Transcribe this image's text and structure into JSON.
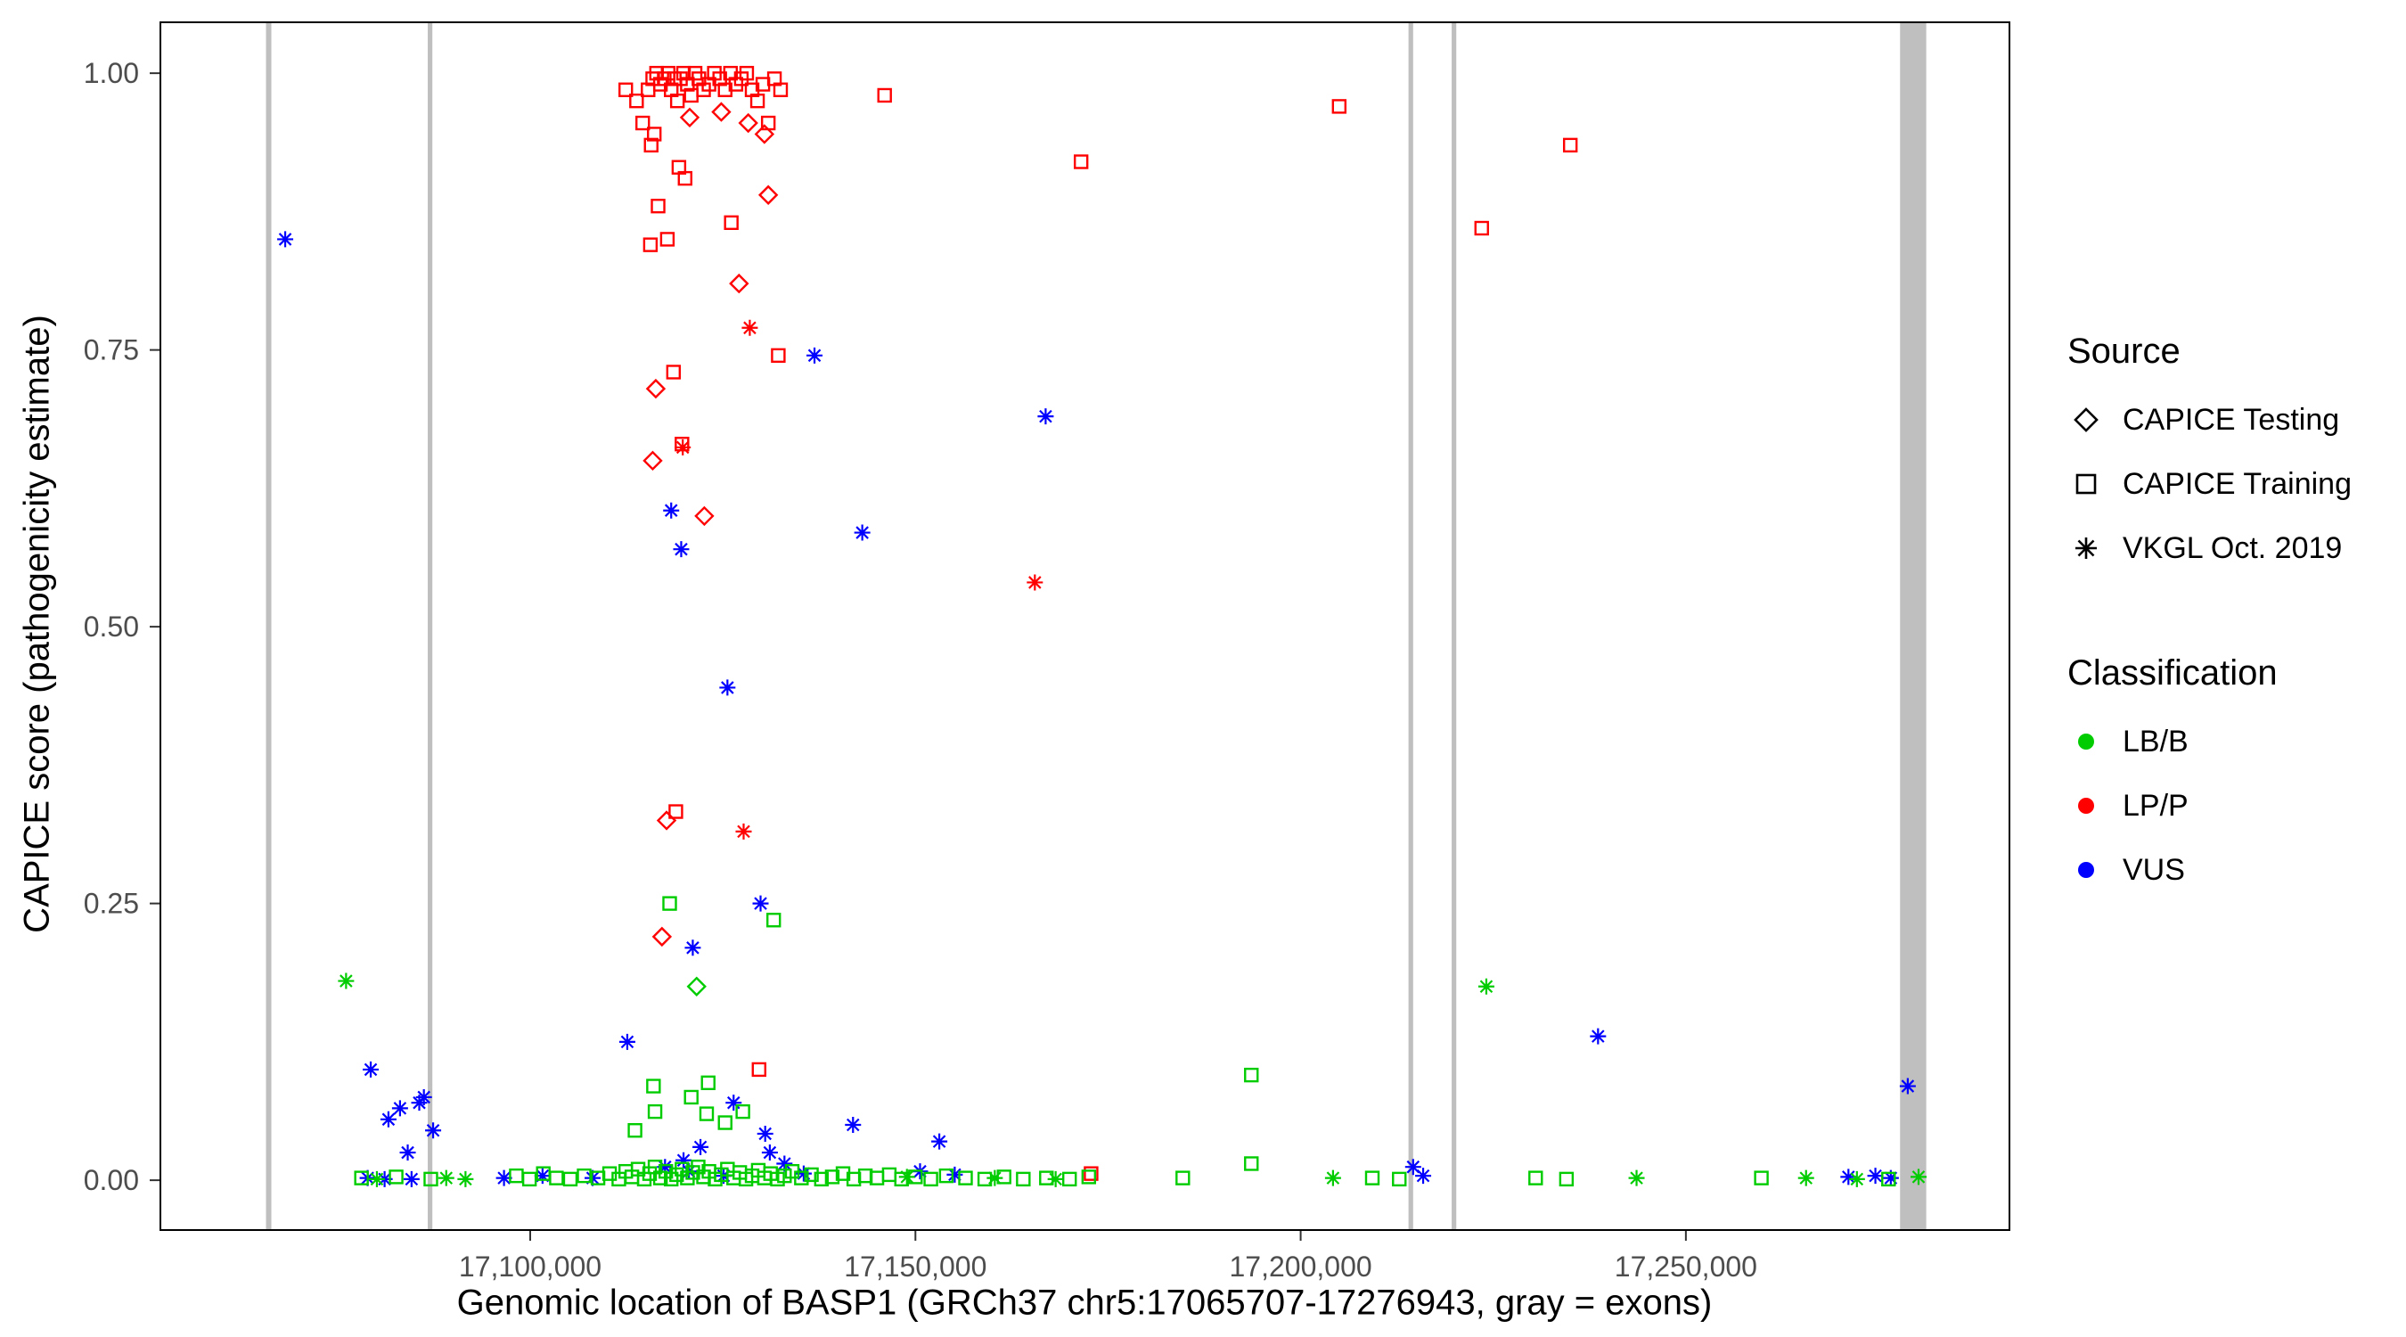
{
  "figure": {
    "xlabel": "Genomic location of BASP1 (GRCh37 chr5:17065707-17276943, gray = exons)",
    "ylabel": "CAPICE score (pathogenicity estimate)"
  },
  "legend": {
    "source": {
      "title": "Source",
      "items": [
        {
          "label": "CAPICE Testing",
          "marker": "diamond"
        },
        {
          "label": "CAPICE Training",
          "marker": "square"
        },
        {
          "label": "VKGL Oct. 2019",
          "marker": "asterisk"
        }
      ]
    },
    "classification": {
      "title": "Classification",
      "items": [
        {
          "label": "LB/B",
          "color": "#00cc00"
        },
        {
          "label": "LP/P",
          "color": "#ff0000"
        },
        {
          "label": "VUS",
          "color": "#0000ff"
        }
      ]
    }
  },
  "chart_data": {
    "type": "scatter",
    "title": "",
    "xlabel": "Genomic location of BASP1 (GRCh37 chr5:17065707-17276943, gray = exons)",
    "ylabel": "CAPICE score (pathogenicity estimate)",
    "xlim": [
      17052000,
      17292000
    ],
    "ylim": [
      -0.045,
      1.046
    ],
    "x_ticks": [
      {
        "value": 17100000,
        "label": "17,100,000"
      },
      {
        "value": 17150000,
        "label": "17,150,000"
      },
      {
        "value": 17200000,
        "label": "17,200,000"
      },
      {
        "value": 17250000,
        "label": "17,250,000"
      }
    ],
    "y_ticks": [
      {
        "value": 0.0,
        "label": "0.00"
      },
      {
        "value": 0.25,
        "label": "0.25"
      },
      {
        "value": 0.5,
        "label": "0.50"
      },
      {
        "value": 0.75,
        "label": "0.75"
      },
      {
        "value": 1.0,
        "label": "1.00"
      }
    ],
    "exon_color": "#bfbfbf",
    "exons": [
      [
        17065707,
        17066400
      ],
      [
        17086700,
        17087300
      ],
      [
        17214000,
        17214600
      ],
      [
        17219600,
        17220200
      ],
      [
        17277800,
        17281200
      ]
    ],
    "marker_shapes": {
      "test": "diamond",
      "train": "square",
      "vkgl": "asterisk"
    },
    "source_names": {
      "test": "CAPICE Testing",
      "train": "CAPICE Training",
      "vkgl": "VKGL Oct. 2019"
    },
    "class_names": {
      "B": "LB/B",
      "P": "LP/P",
      "U": "VUS"
    },
    "class_colors": {
      "B": "#00cc00",
      "P": "#ff0000",
      "U": "#0000ff"
    },
    "points": [
      [
        17112400,
        0.985,
        "train",
        "P"
      ],
      [
        17113800,
        0.975,
        "train",
        "P"
      ],
      [
        17114600,
        0.955,
        "train",
        "P"
      ],
      [
        17115300,
        0.985,
        "train",
        "P"
      ],
      [
        17115900,
        0.995,
        "train",
        "P"
      ],
      [
        17116400,
        1.0,
        "train",
        "P"
      ],
      [
        17116900,
        0.99,
        "train",
        "P"
      ],
      [
        17117400,
        0.995,
        "train",
        "P"
      ],
      [
        17117900,
        1.0,
        "train",
        "P"
      ],
      [
        17118300,
        0.985,
        "train",
        "P"
      ],
      [
        17118700,
        0.995,
        "train",
        "P"
      ],
      [
        17119100,
        0.975,
        "train",
        "P"
      ],
      [
        17119500,
        0.995,
        "train",
        "P"
      ],
      [
        17119900,
        1.0,
        "train",
        "P"
      ],
      [
        17120400,
        0.99,
        "train",
        "P"
      ],
      [
        17120900,
        0.98,
        "train",
        "P"
      ],
      [
        17121400,
        1.0,
        "train",
        "P"
      ],
      [
        17121900,
        0.995,
        "train",
        "P"
      ],
      [
        17122500,
        0.985,
        "train",
        "P"
      ],
      [
        17123200,
        0.99,
        "train",
        "P"
      ],
      [
        17123900,
        1.0,
        "train",
        "P"
      ],
      [
        17124600,
        0.995,
        "train",
        "P"
      ],
      [
        17125300,
        0.985,
        "train",
        "P"
      ],
      [
        17126000,
        1.0,
        "train",
        "P"
      ],
      [
        17126700,
        0.99,
        "train",
        "P"
      ],
      [
        17127400,
        0.995,
        "train",
        "P"
      ],
      [
        17128100,
        1.0,
        "train",
        "P"
      ],
      [
        17128800,
        0.985,
        "train",
        "P"
      ],
      [
        17129500,
        0.975,
        "train",
        "P"
      ],
      [
        17130200,
        0.99,
        "train",
        "P"
      ],
      [
        17130900,
        0.955,
        "train",
        "P"
      ],
      [
        17131700,
        0.995,
        "train",
        "P"
      ],
      [
        17132500,
        0.985,
        "train",
        "P"
      ],
      [
        17116100,
        0.945,
        "train",
        "P"
      ],
      [
        17119300,
        0.915,
        "train",
        "P"
      ],
      [
        17115700,
        0.935,
        "train",
        "P"
      ],
      [
        17120100,
        0.905,
        "train",
        "P"
      ],
      [
        17116600,
        0.88,
        "train",
        "P"
      ],
      [
        17115600,
        0.845,
        "train",
        "P"
      ],
      [
        17117800,
        0.85,
        "train",
        "P"
      ],
      [
        17126100,
        0.865,
        "train",
        "P"
      ],
      [
        17146000,
        0.98,
        "train",
        "P"
      ],
      [
        17205000,
        0.97,
        "train",
        "P"
      ],
      [
        17171500,
        0.92,
        "train",
        "P"
      ],
      [
        17235000,
        0.935,
        "train",
        "P"
      ],
      [
        17223500,
        0.86,
        "train",
        "P"
      ],
      [
        17132200,
        0.745,
        "train",
        "P"
      ],
      [
        17118600,
        0.73,
        "train",
        "P"
      ],
      [
        17118900,
        0.333,
        "train",
        "P"
      ],
      [
        17129700,
        0.1,
        "train",
        "P"
      ],
      [
        17119700,
        0.665,
        "train",
        "P"
      ],
      [
        17172800,
        0.006,
        "train",
        "P"
      ],
      [
        17130900,
        0.89,
        "test",
        "P"
      ],
      [
        17127100,
        0.81,
        "test",
        "P"
      ],
      [
        17116300,
        0.715,
        "test",
        "P"
      ],
      [
        17115900,
        0.65,
        "test",
        "P"
      ],
      [
        17122600,
        0.6,
        "test",
        "P"
      ],
      [
        17117700,
        0.325,
        "test",
        "P"
      ],
      [
        17117100,
        0.22,
        "test",
        "P"
      ],
      [
        17124800,
        0.965,
        "test",
        "P"
      ],
      [
        17128300,
        0.955,
        "test",
        "P"
      ],
      [
        17130400,
        0.945,
        "test",
        "P"
      ],
      [
        17120700,
        0.96,
        "test",
        "P"
      ],
      [
        17128500,
        0.77,
        "vkgl",
        "P"
      ],
      [
        17127700,
        0.315,
        "vkgl",
        "P"
      ],
      [
        17165500,
        0.54,
        "vkgl",
        "P"
      ],
      [
        17119800,
        0.662,
        "vkgl",
        "P"
      ],
      [
        17068200,
        0.85,
        "vkgl",
        "U"
      ],
      [
        17118300,
        0.605,
        "vkgl",
        "U"
      ],
      [
        17119600,
        0.57,
        "vkgl",
        "U"
      ],
      [
        17125600,
        0.445,
        "vkgl",
        "U"
      ],
      [
        17136900,
        0.745,
        "vkgl",
        "U"
      ],
      [
        17143100,
        0.585,
        "vkgl",
        "U"
      ],
      [
        17166900,
        0.69,
        "vkgl",
        "U"
      ],
      [
        17129900,
        0.25,
        "vkgl",
        "U"
      ],
      [
        17121100,
        0.21,
        "vkgl",
        "U"
      ],
      [
        17112600,
        0.125,
        "vkgl",
        "U"
      ],
      [
        17238600,
        0.13,
        "vkgl",
        "U"
      ],
      [
        17278800,
        0.085,
        "vkgl",
        "U"
      ],
      [
        17079300,
        0.1,
        "vkgl",
        "U"
      ],
      [
        17081600,
        0.055,
        "vkgl",
        "U"
      ],
      [
        17083100,
        0.065,
        "vkgl",
        "U"
      ],
      [
        17085600,
        0.07,
        "vkgl",
        "U"
      ],
      [
        17086200,
        0.075,
        "vkgl",
        "U"
      ],
      [
        17084100,
        0.025,
        "vkgl",
        "U"
      ],
      [
        17087400,
        0.045,
        "vkgl",
        "U"
      ],
      [
        17141900,
        0.05,
        "vkgl",
        "U"
      ],
      [
        17153100,
        0.035,
        "vkgl",
        "U"
      ],
      [
        17126400,
        0.07,
        "vkgl",
        "U"
      ],
      [
        17130500,
        0.042,
        "vkgl",
        "U"
      ],
      [
        17131100,
        0.025,
        "vkgl",
        "U"
      ],
      [
        17122100,
        0.03,
        "vkgl",
        "U"
      ],
      [
        17119900,
        0.018,
        "vkgl",
        "U"
      ],
      [
        17214600,
        0.012,
        "vkgl",
        "U"
      ],
      [
        17215900,
        0.004,
        "vkgl",
        "U"
      ],
      [
        17078900,
        0.002,
        "vkgl",
        "U"
      ],
      [
        17081100,
        0.001,
        "vkgl",
        "U"
      ],
      [
        17084600,
        0.001,
        "vkgl",
        "U"
      ],
      [
        17101600,
        0.004,
        "vkgl",
        "U"
      ],
      [
        17096600,
        0.002,
        "vkgl",
        "U"
      ],
      [
        17108100,
        0.002,
        "vkgl",
        "U"
      ],
      [
        17120600,
        0.008,
        "vkgl",
        "U"
      ],
      [
        17125100,
        0.004,
        "vkgl",
        "U"
      ],
      [
        17150600,
        0.008,
        "vkgl",
        "U"
      ],
      [
        17155100,
        0.005,
        "vkgl",
        "U"
      ],
      [
        17274600,
        0.004,
        "vkgl",
        "U"
      ],
      [
        17276600,
        0.002,
        "vkgl",
        "U"
      ],
      [
        17271100,
        0.003,
        "vkgl",
        "U"
      ],
      [
        17117500,
        0.012,
        "vkgl",
        "U"
      ],
      [
        17133000,
        0.015,
        "vkgl",
        "U"
      ],
      [
        17135500,
        0.006,
        "vkgl",
        "U"
      ],
      [
        17121600,
        0.175,
        "test",
        "B"
      ],
      [
        17076100,
        0.18,
        "vkgl",
        "B"
      ],
      [
        17224100,
        0.175,
        "vkgl",
        "B"
      ],
      [
        17080100,
        0.001,
        "vkgl",
        "B"
      ],
      [
        17089100,
        0.002,
        "vkgl",
        "B"
      ],
      [
        17091600,
        0.001,
        "vkgl",
        "B"
      ],
      [
        17148900,
        0.003,
        "vkgl",
        "B"
      ],
      [
        17160300,
        0.002,
        "vkgl",
        "B"
      ],
      [
        17168200,
        0.001,
        "vkgl",
        "B"
      ],
      [
        17204200,
        0.002,
        "vkgl",
        "B"
      ],
      [
        17243600,
        0.002,
        "vkgl",
        "B"
      ],
      [
        17265600,
        0.002,
        "vkgl",
        "B"
      ],
      [
        17272200,
        0.001,
        "vkgl",
        "B"
      ],
      [
        17280200,
        0.003,
        "vkgl",
        "B"
      ],
      [
        17118100,
        0.25,
        "train",
        "B"
      ],
      [
        17131600,
        0.235,
        "train",
        "B"
      ],
      [
        17193600,
        0.095,
        "train",
        "B"
      ],
      [
        17116000,
        0.085,
        "train",
        "B"
      ],
      [
        17116200,
        0.062,
        "train",
        "B"
      ],
      [
        17120900,
        0.075,
        "train",
        "B"
      ],
      [
        17122900,
        0.06,
        "train",
        "B"
      ],
      [
        17125300,
        0.052,
        "train",
        "B"
      ],
      [
        17123100,
        0.088,
        "train",
        "B"
      ],
      [
        17127600,
        0.062,
        "train",
        "B"
      ],
      [
        17113600,
        0.045,
        "train",
        "B"
      ],
      [
        17193600,
        0.015,
        "train",
        "B"
      ],
      [
        17078100,
        0.002,
        "train",
        "B"
      ],
      [
        17082600,
        0.003,
        "train",
        "B"
      ],
      [
        17087100,
        0.001,
        "train",
        "B"
      ],
      [
        17098200,
        0.004,
        "train",
        "B"
      ],
      [
        17099900,
        0.001,
        "train",
        "B"
      ],
      [
        17101700,
        0.006,
        "train",
        "B"
      ],
      [
        17103400,
        0.002,
        "train",
        "B"
      ],
      [
        17105200,
        0.001,
        "train",
        "B"
      ],
      [
        17107000,
        0.004,
        "train",
        "B"
      ],
      [
        17108800,
        0.002,
        "train",
        "B"
      ],
      [
        17110300,
        0.006,
        "train",
        "B"
      ],
      [
        17111500,
        0.001,
        "train",
        "B"
      ],
      [
        17112400,
        0.008,
        "train",
        "B"
      ],
      [
        17113200,
        0.003,
        "train",
        "B"
      ],
      [
        17114000,
        0.01,
        "train",
        "B"
      ],
      [
        17114800,
        0.001,
        "train",
        "B"
      ],
      [
        17115500,
        0.006,
        "train",
        "B"
      ],
      [
        17116200,
        0.012,
        "train",
        "B"
      ],
      [
        17116900,
        0.002,
        "train",
        "B"
      ],
      [
        17117600,
        0.008,
        "train",
        "B"
      ],
      [
        17118300,
        0.001,
        "train",
        "B"
      ],
      [
        17119000,
        0.005,
        "train",
        "B"
      ],
      [
        17119700,
        0.01,
        "train",
        "B"
      ],
      [
        17120400,
        0.002,
        "train",
        "B"
      ],
      [
        17121100,
        0.007,
        "train",
        "B"
      ],
      [
        17121800,
        0.012,
        "train",
        "B"
      ],
      [
        17122500,
        0.003,
        "train",
        "B"
      ],
      [
        17123200,
        0.008,
        "train",
        "B"
      ],
      [
        17124000,
        0.001,
        "train",
        "B"
      ],
      [
        17124800,
        0.005,
        "train",
        "B"
      ],
      [
        17125600,
        0.01,
        "train",
        "B"
      ],
      [
        17126400,
        0.002,
        "train",
        "B"
      ],
      [
        17127200,
        0.007,
        "train",
        "B"
      ],
      [
        17128000,
        0.001,
        "train",
        "B"
      ],
      [
        17128800,
        0.004,
        "train",
        "B"
      ],
      [
        17129600,
        0.009,
        "train",
        "B"
      ],
      [
        17130400,
        0.002,
        "train",
        "B"
      ],
      [
        17131200,
        0.006,
        "train",
        "B"
      ],
      [
        17132100,
        0.001,
        "train",
        "B"
      ],
      [
        17133000,
        0.004,
        "train",
        "B"
      ],
      [
        17134000,
        0.008,
        "train",
        "B"
      ],
      [
        17135200,
        0.002,
        "train",
        "B"
      ],
      [
        17136500,
        0.005,
        "train",
        "B"
      ],
      [
        17137800,
        0.001,
        "train",
        "B"
      ],
      [
        17139200,
        0.003,
        "train",
        "B"
      ],
      [
        17140600,
        0.006,
        "train",
        "B"
      ],
      [
        17142000,
        0.001,
        "train",
        "B"
      ],
      [
        17143500,
        0.004,
        "train",
        "B"
      ],
      [
        17145000,
        0.002,
        "train",
        "B"
      ],
      [
        17146600,
        0.005,
        "train",
        "B"
      ],
      [
        17148200,
        0.001,
        "train",
        "B"
      ],
      [
        17150000,
        0.003,
        "train",
        "B"
      ],
      [
        17152000,
        0.001,
        "train",
        "B"
      ],
      [
        17154000,
        0.004,
        "train",
        "B"
      ],
      [
        17156500,
        0.002,
        "train",
        "B"
      ],
      [
        17159000,
        0.001,
        "train",
        "B"
      ],
      [
        17161500,
        0.003,
        "train",
        "B"
      ],
      [
        17164000,
        0.001,
        "train",
        "B"
      ],
      [
        17167000,
        0.002,
        "train",
        "B"
      ],
      [
        17170000,
        0.001,
        "train",
        "B"
      ],
      [
        17172500,
        0.003,
        "train",
        "B"
      ],
      [
        17184700,
        0.002,
        "train",
        "B"
      ],
      [
        17209300,
        0.002,
        "train",
        "B"
      ],
      [
        17212800,
        0.001,
        "train",
        "B"
      ],
      [
        17230500,
        0.002,
        "train",
        "B"
      ],
      [
        17234500,
        0.001,
        "train",
        "B"
      ],
      [
        17259800,
        0.002,
        "train",
        "B"
      ],
      [
        17276300,
        0.001,
        "train",
        "B"
      ]
    ]
  }
}
